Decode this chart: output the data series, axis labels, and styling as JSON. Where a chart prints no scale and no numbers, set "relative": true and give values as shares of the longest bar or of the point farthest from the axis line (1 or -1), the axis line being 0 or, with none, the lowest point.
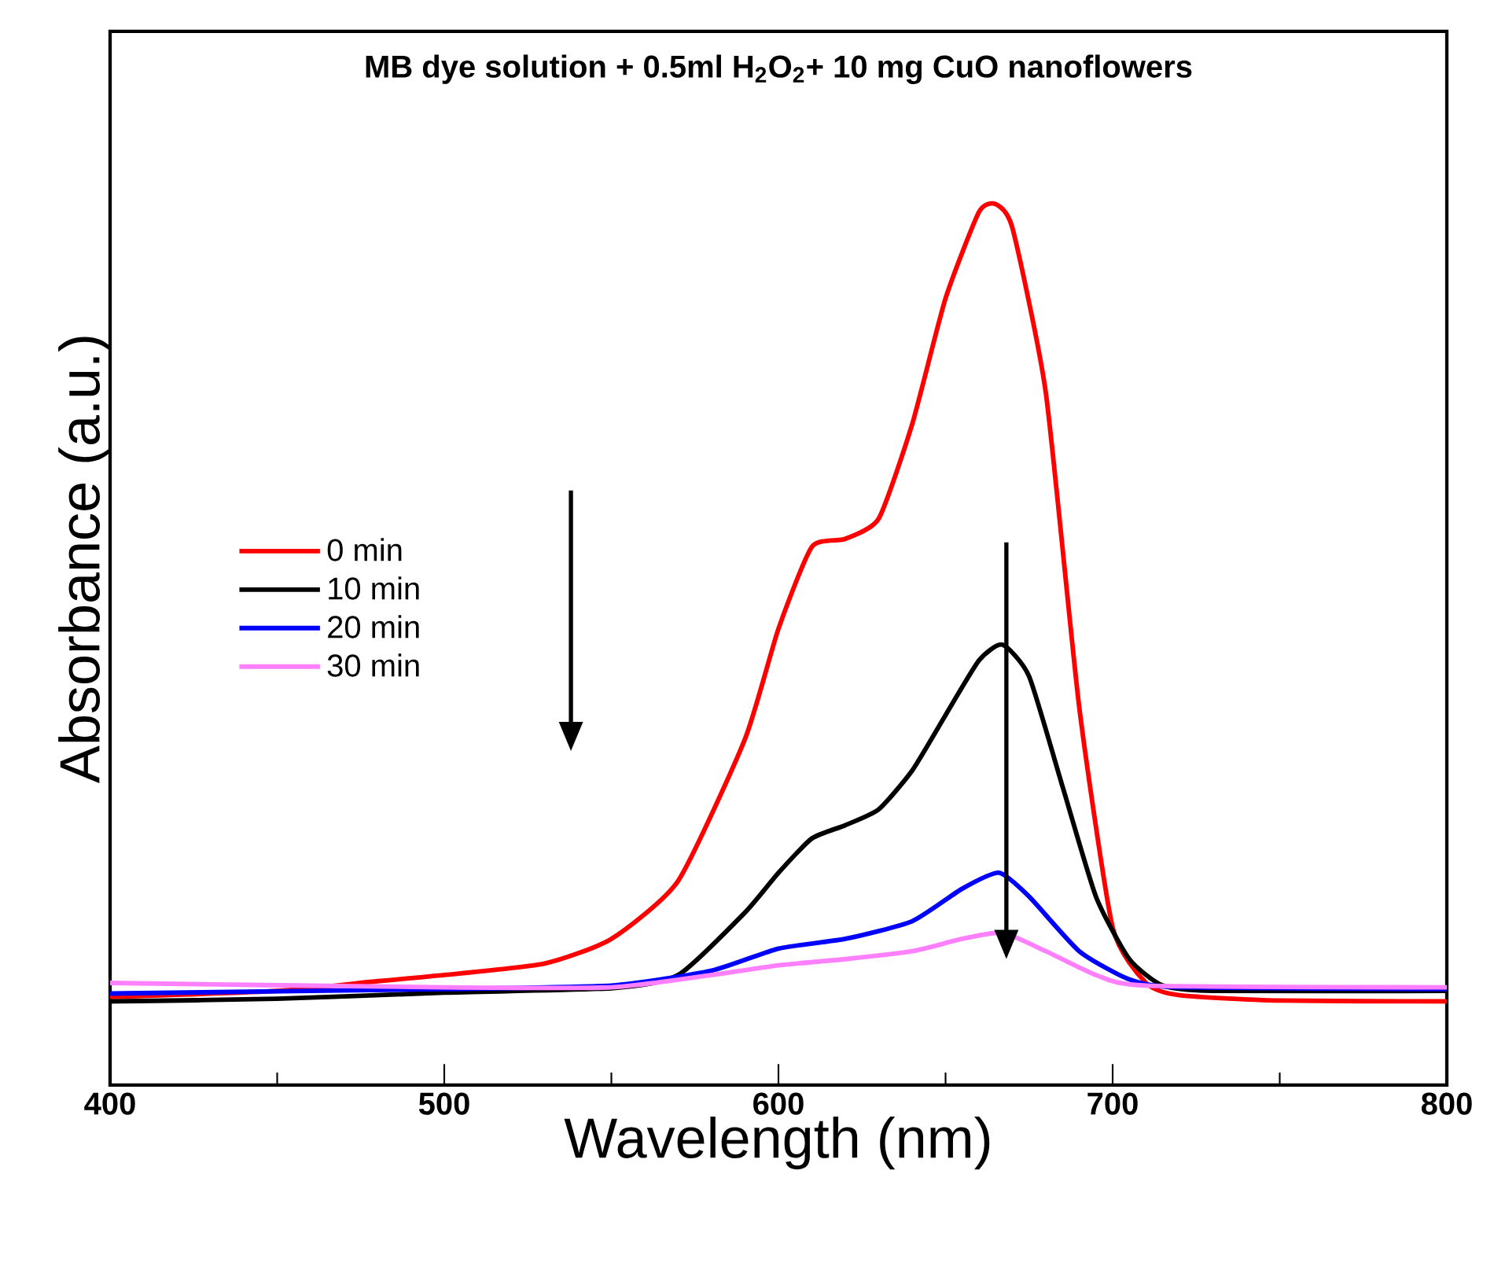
{
  "chart_data": {
    "type": "line",
    "title": "MB dye solution + 0.5ml H$_{2}$O$_{2}$+ 10 mg CuO nanoflowers",
    "xlabel": "Wavelength (nm)",
    "ylabel": "Absorbance (a.u.)",
    "relative": true,
    "xlim": [
      400,
      800
    ],
    "xticks": [
      400,
      {
        "value": 450,
        "label": null
      },
      500,
      {
        "value": 550,
        "label": null
      },
      600,
      {
        "value": 650,
        "label": null
      },
      700,
      {
        "value": 750,
        "label": null
      },
      800
    ],
    "legend": "left",
    "grid": false,
    "marker": "none",
    "line_style": "solid",
    "series": [
      {
        "name": "0 min",
        "color": "#ff0000",
        "x": [
          400,
          450,
          480,
          500,
          530,
          550,
          570,
          590,
          600,
          610,
          620,
          630,
          640,
          650,
          660,
          665,
          670,
          680,
          690,
          700,
          710,
          720,
          750,
          800
        ],
        "values": [
          0.1,
          0.107,
          0.118,
          0.125,
          0.138,
          0.166,
          0.232,
          0.393,
          0.518,
          0.611,
          0.62,
          0.643,
          0.75,
          0.893,
          0.991,
          1.0,
          0.973,
          0.786,
          0.429,
          0.179,
          0.116,
          0.102,
          0.096,
          0.095
        ]
      },
      {
        "name": "10 min",
        "color": "#000000",
        "x": [
          400,
          450,
          500,
          550,
          570,
          590,
          600,
          610,
          620,
          630,
          640,
          650,
          660,
          667,
          675,
          685,
          695,
          705,
          715,
          730,
          800
        ],
        "values": [
          0.095,
          0.098,
          0.105,
          0.11,
          0.125,
          0.196,
          0.241,
          0.28,
          0.295,
          0.313,
          0.357,
          0.42,
          0.482,
          0.5,
          0.464,
          0.339,
          0.214,
          0.143,
          0.113,
          0.107,
          0.107
        ]
      },
      {
        "name": "20 min",
        "color": "#0000ff",
        "x": [
          400,
          500,
          550,
          580,
          600,
          620,
          640,
          655,
          666,
          675,
          690,
          705,
          720,
          800
        ],
        "values": [
          0.104,
          0.109,
          0.113,
          0.13,
          0.155,
          0.166,
          0.186,
          0.223,
          0.241,
          0.214,
          0.152,
          0.12,
          0.111,
          0.109
        ]
      },
      {
        "name": "30 min",
        "color": "#ff80ff",
        "x": [
          400,
          500,
          550,
          580,
          600,
          620,
          640,
          655,
          667,
          680,
          695,
          710,
          800
        ],
        "values": [
          0.116,
          0.111,
          0.111,
          0.125,
          0.136,
          0.143,
          0.152,
          0.166,
          0.173,
          0.152,
          0.125,
          0.113,
          0.111
        ]
      }
    ]
  }
}
